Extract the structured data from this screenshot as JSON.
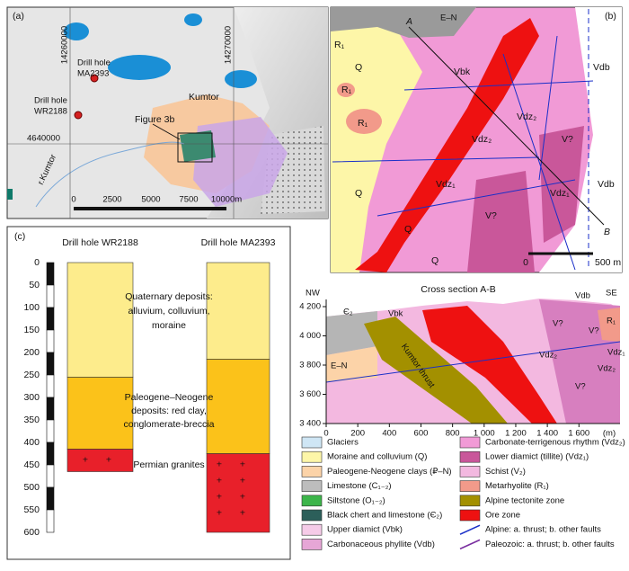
{
  "panel_a": {
    "label": "(a)",
    "grid_labels": [
      "14260000",
      "14270000",
      "4640000"
    ],
    "drill_holes": [
      [
        "Drill hole",
        "MA2393"
      ],
      [
        "Drill hole",
        "WR2188"
      ]
    ],
    "places": [
      "Figure 3b",
      "Kumtor",
      "r.Kumtor"
    ],
    "scale": [
      "0",
      "2500",
      "5000",
      "7500",
      "10000m"
    ]
  },
  "panel_b": {
    "label": "(b)",
    "labels": [
      "Q",
      "Q",
      "Q",
      "Q",
      "R₁",
      "R₁",
      "R₁",
      "Vbk",
      "Vdz₁",
      "Vdz₂",
      "Vdz₂",
      "Vdz₁",
      "V?",
      "V?",
      "Vdb",
      "Vdb",
      "A",
      "B",
      "0",
      "500 m",
      "E–N"
    ]
  },
  "panel_c": {
    "label": "(c)",
    "ylim": [
      0,
      600
    ],
    "yticks": [
      0,
      50,
      100,
      150,
      200,
      250,
      300,
      350,
      400,
      450,
      500,
      550,
      600
    ],
    "holes": [
      {
        "name": "Drill hole WR2188",
        "layers": [
          {
            "top": 0,
            "bottom": 255,
            "color": "#fdec8c"
          },
          {
            "top": 255,
            "bottom": 415,
            "color": "#fbc21a"
          },
          {
            "top": 415,
            "bottom": 465,
            "color": "#e8202a"
          }
        ]
      },
      {
        "name": "Drill hole MA2393",
        "layers": [
          {
            "top": 0,
            "bottom": 215,
            "color": "#fdec8c"
          },
          {
            "top": 215,
            "bottom": 425,
            "color": "#fbc21a"
          },
          {
            "top": 425,
            "bottom": 600,
            "color": "#e8202a"
          }
        ]
      }
    ],
    "units": [
      [
        "Quaternary deposits:",
        "alluvium, colluvium,",
        "moraine"
      ],
      [
        "Paleogene–Neogene",
        "deposits: red clay,",
        "conglomerate-breccia"
      ],
      [
        "Permian granites"
      ]
    ]
  },
  "cross_section": {
    "title": "Cross section A-B",
    "unit": "(m)",
    "xlim": [
      0,
      1860
    ],
    "ylim": [
      3400,
      4200
    ],
    "xticks": [
      0,
      200,
      400,
      600,
      800,
      {
        "value": 1000,
        "label": "1 000"
      },
      {
        "value": 1200,
        "label": "1 200"
      },
      {
        "value": 1400,
        "label": "1 400"
      },
      {
        "value": 1600,
        "label": "1 600"
      }
    ],
    "yticks": [
      {
        "value": 3400,
        "label": "3 400"
      },
      {
        "value": 3600,
        "label": "3 600"
      },
      {
        "value": 3800,
        "label": "3 800"
      },
      {
        "value": 4000,
        "label": "4 000"
      },
      {
        "value": 4200,
        "label": "4 200"
      }
    ],
    "labels": [
      "NW",
      "SE",
      "Є₂",
      "Vbk",
      "Vdb",
      "E–N",
      "Kumtor thrust",
      "V?",
      "V?",
      "V?",
      "Vdz₂",
      "Vdz₂",
      "Vdz₁",
      "R₁"
    ]
  },
  "legend": {
    "items": [
      {
        "label": "Glaciers",
        "color": "#cfe6f5"
      },
      {
        "label": "Moraine and colluvium (Q)",
        "color": "#fdf6a8"
      },
      {
        "label": "Paleogene-Neogene clays (₽–N)",
        "color": "#fcd3a8"
      },
      {
        "label": "Limestone (C₁₋₂)",
        "color": "#bdbdbd"
      },
      {
        "label": "Siltstone (O₁₋₂)",
        "color": "#3cb54a"
      },
      {
        "label": "Black chert and limestone (Є₂)",
        "color": "#2c5f5a"
      },
      {
        "label": "Upper diamict (Vbk)",
        "color": "#f6cbe8"
      },
      {
        "label": "Carbonaceous phyllite (Vdb)",
        "color": "#e6a6d6"
      },
      {
        "label": "Carbonate-terrigenous rhythm (Vdz₂)",
        "color": "#f19ad6"
      },
      {
        "label": "Lower diamict (tillite) (Vdz₁)",
        "color": "#c9579a"
      },
      {
        "label": "Schist (V₂)",
        "color": "#f3b8e0"
      },
      {
        "label": "Metarhyolite (R₁)",
        "color": "#f29a8a"
      },
      {
        "label": "Alpine tectonite zone",
        "color": "#a39000"
      },
      {
        "label": "Ore zone",
        "color": "#ee1111"
      },
      {
        "label": "Alpine: a. thrust; b. other faults",
        "color": "#1a2fc8"
      },
      {
        "label": "Paleozoic: a. thrust; b. other faults",
        "color": "#7a2fa0"
      }
    ]
  }
}
